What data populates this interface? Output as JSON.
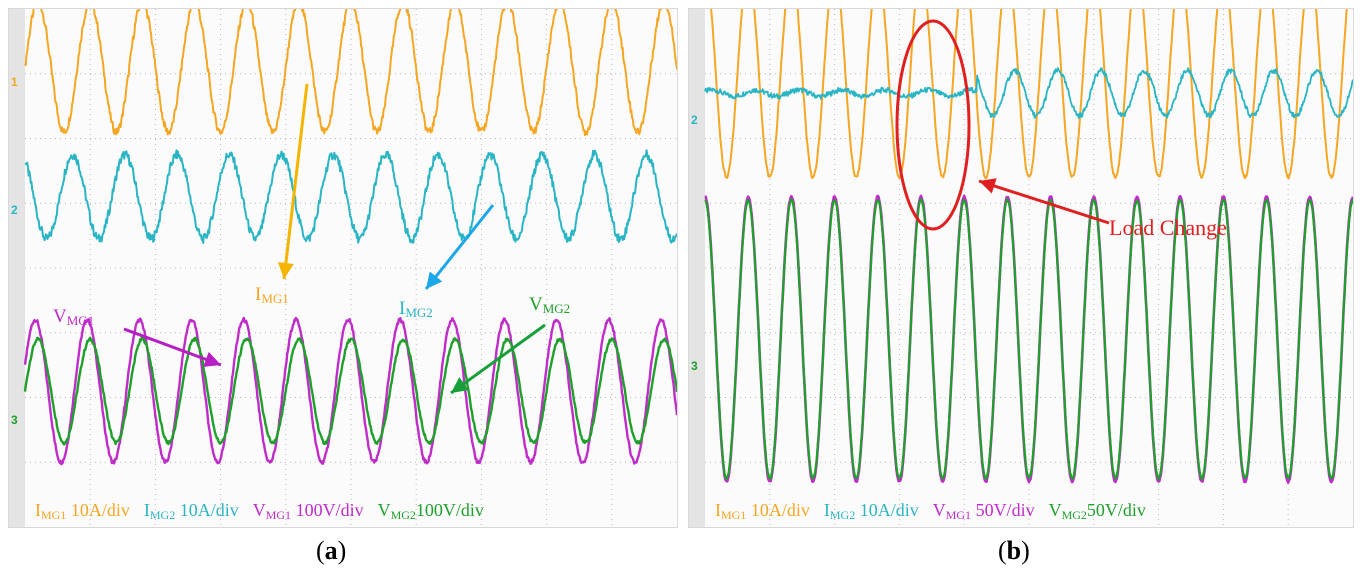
{
  "colors": {
    "img1": "#f5a623",
    "img2": "#2ab5c4",
    "vmg1": "#c02cc9",
    "vmg2": "#1fa02b",
    "arrow_img1": "#f5b400",
    "arrow_img2": "#1ba7e8",
    "arrow_vmg1": "#b51fc4",
    "arrow_vmg2": "#17a03a",
    "highlight": "#e02020",
    "grid": "#b8b8b8"
  },
  "channel_markers": [
    "1",
    "2",
    "3"
  ],
  "panel_a": {
    "caption_open": "(",
    "caption_letter": "a",
    "caption_close": ")",
    "labels": {
      "img1": {
        "main": "I",
        "sub": "MG1"
      },
      "img2": {
        "main": "I",
        "sub": "MG2"
      },
      "vmg1": {
        "main": "V",
        "sub": "MG1"
      },
      "vmg2": {
        "main": "V",
        "sub": "MG2"
      }
    },
    "scales": [
      {
        "main": "I",
        "sub": "MG1",
        "value": " 10A/div",
        "color_key": "img1"
      },
      {
        "main": "I",
        "sub": "MG2",
        "value": " 10A/div",
        "color_key": "img2"
      },
      {
        "main": "V",
        "sub": "MG1",
        "value": " 100V/div",
        "color_key": "vmg1"
      },
      {
        "main": "V",
        "sub": "MG2",
        "value": "100V/div",
        "color_key": "vmg2"
      }
    ]
  },
  "panel_b": {
    "caption_open": "(",
    "caption_letter": "b",
    "caption_close": ")",
    "annotation": "Load Change",
    "scales": [
      {
        "main": "I",
        "sub": "MG1",
        "value": " 10A/div",
        "color_key": "img1"
      },
      {
        "main": "I",
        "sub": "MG2",
        "value": " 10A/div",
        "color_key": "img2"
      },
      {
        "main": "V",
        "sub": "MG1",
        "value": " 50V/div",
        "color_key": "vmg1"
      },
      {
        "main": "V",
        "sub": "MG2",
        "value": "50V/div",
        "color_key": "vmg2"
      }
    ]
  },
  "chart_data": [
    {
      "type": "line",
      "title": "",
      "xlabel": "",
      "ylabel": "",
      "grid": true,
      "series": [
        {
          "name": "IMG1",
          "scale": "10A/div",
          "cycles": 12.5,
          "amplitude_div": 1.0,
          "offset_div": 3.1,
          "phase_deg": 0
        },
        {
          "name": "IMG2",
          "scale": "10A/div",
          "cycles": 12.5,
          "amplitude_div": 0.65,
          "offset_div": 1.1,
          "phase_deg": 120
        },
        {
          "name": "VMG1",
          "scale": "100V/div",
          "cycles": 12.5,
          "amplitude_div": 1.1,
          "offset_div": -1.9,
          "phase_deg": 20
        },
        {
          "name": "VMG2",
          "scale": "100V/div",
          "cycles": 12.5,
          "amplitude_div": 0.8,
          "offset_div": -1.9,
          "phase_deg": 0
        }
      ]
    },
    {
      "type": "line",
      "title": "",
      "xlabel": "",
      "ylabel": "",
      "grid": true,
      "annotation": "Load Change",
      "series": [
        {
          "name": "IMG1",
          "scale": "10A/div",
          "cycles": 15,
          "amplitude_div": 1.6,
          "offset_div": 3.0,
          "phase_deg": 90
        },
        {
          "name": "IMG2",
          "scale": "10A/div",
          "cycles": 15,
          "amplitude_div_before": 0.05,
          "amplitude_div_after": 0.35,
          "change_at_fraction": 0.42,
          "offset_div": 2.7,
          "phase_deg": 30
        },
        {
          "name": "VMG1",
          "scale": "50V/div",
          "cycles": 15,
          "amplitude_div": 2.2,
          "offset_div": -1.1,
          "phase_deg": 90
        },
        {
          "name": "VMG2",
          "scale": "50V/div",
          "cycles": 15,
          "amplitude_div": 2.15,
          "offset_div": -1.1,
          "phase_deg": 90
        }
      ]
    }
  ]
}
